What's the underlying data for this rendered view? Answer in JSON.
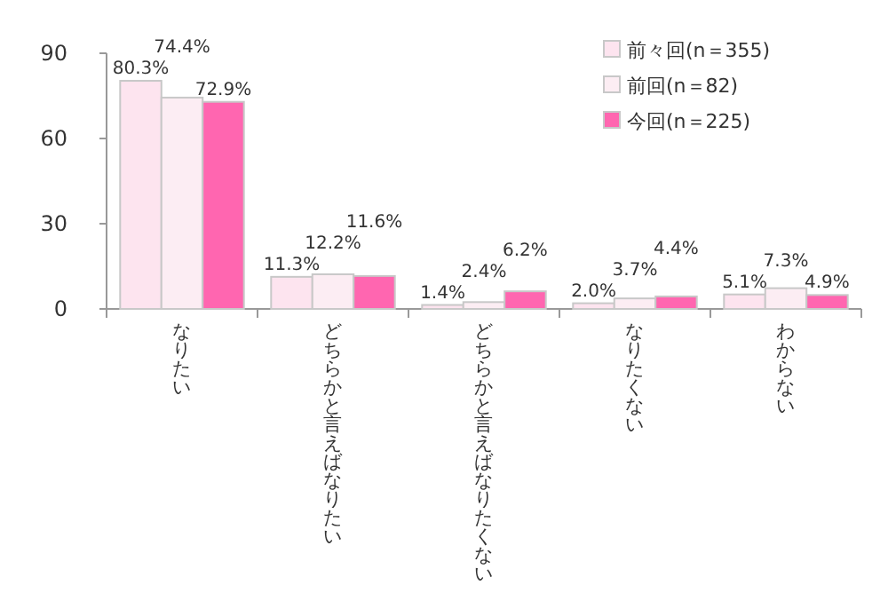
{
  "chart_data": {
    "type": "bar",
    "categories": [
      "なりたい",
      "どちらかと言えばなりたい",
      "どちらかと言えばなりたくない",
      "なりたくない",
      "わからない"
    ],
    "series": [
      {
        "name": "前々回(n＝355)",
        "color": "#fde4ef",
        "values": [
          80.3,
          11.3,
          1.4,
          2.0,
          5.1
        ],
        "value_labels": [
          "80.3%",
          "11.3%",
          "1.4%",
          "2.0%",
          "5.1%"
        ]
      },
      {
        "name": "前回(n＝82)",
        "color": "#fcedf3",
        "values": [
          74.4,
          12.2,
          2.4,
          3.7,
          7.3
        ],
        "value_labels": [
          "74.4%",
          "12.2%",
          "2.4%",
          "3.7%",
          "7.3%"
        ]
      },
      {
        "name": "今回(n＝225)",
        "color": "#ff66b0",
        "values": [
          72.9,
          11.6,
          6.2,
          4.4,
          4.9
        ],
        "value_labels": [
          "72.9%",
          "11.6%",
          "6.2%",
          "4.4%",
          "4.9%"
        ]
      }
    ],
    "ylim": [
      0,
      90
    ],
    "yticks": [
      0,
      30,
      60,
      90
    ],
    "grid": false,
    "legend": "top right"
  }
}
